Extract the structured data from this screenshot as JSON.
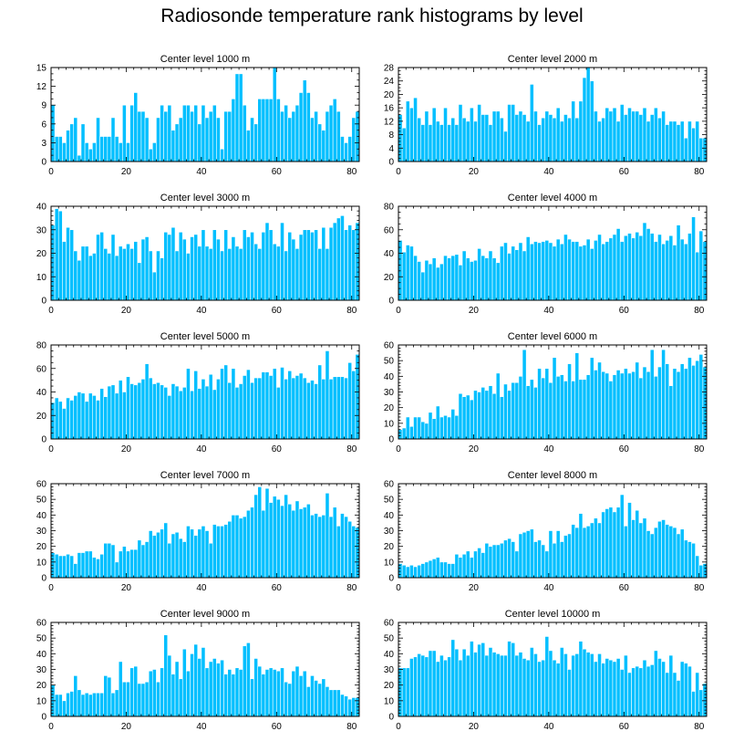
{
  "figure": {
    "title": "Radiosonde temperature rank histograms by level"
  },
  "style": {
    "bar_color": "#00bfff",
    "bar_outline": "#ffffff",
    "axis_color": "#000000"
  },
  "chart_data": [
    {
      "type": "bar",
      "title": "Center level 1000 m",
      "ylim": [
        0,
        15
      ],
      "yticks": [
        0,
        3,
        6,
        9,
        12,
        15
      ],
      "xlim": [
        0,
        82
      ],
      "xticks": [
        0,
        20,
        40,
        60,
        80
      ],
      "values": [
        9,
        4,
        4,
        3,
        5,
        6,
        7,
        1,
        6,
        3,
        2,
        3,
        7,
        4,
        4,
        4,
        7,
        4,
        3,
        9,
        3,
        9,
        11,
        8,
        8,
        7,
        2,
        3,
        7,
        9,
        8,
        9,
        5,
        6,
        7,
        9,
        9,
        8,
        9,
        6,
        9,
        7,
        8,
        9,
        7,
        2,
        8,
        8,
        10,
        14,
        14,
        9,
        5,
        7,
        6,
        10,
        10,
        10,
        10,
        15,
        10,
        8,
        9,
        7,
        8,
        9,
        11,
        13,
        11,
        7,
        8,
        6,
        5,
        8,
        9,
        10,
        8,
        4,
        3,
        4,
        7,
        8
      ]
    },
    {
      "type": "bar",
      "title": "Center level 2000 m",
      "ylim": [
        0,
        28
      ],
      "yticks": [
        0,
        4,
        8,
        12,
        16,
        20,
        24,
        28
      ],
      "xlim": [
        0,
        82
      ],
      "xticks": [
        0,
        20,
        40,
        60,
        80
      ],
      "values": [
        14,
        10,
        18,
        16,
        19,
        13,
        11,
        15,
        11,
        16,
        12,
        11,
        16,
        11,
        13,
        11,
        17,
        13,
        12,
        16,
        12,
        17,
        14,
        14,
        11,
        15,
        15,
        13,
        9,
        17,
        17,
        14,
        15,
        14,
        12,
        23,
        15,
        11,
        13,
        15,
        14,
        13,
        16,
        12,
        14,
        13,
        18,
        13,
        18,
        25,
        28,
        24,
        15,
        12,
        13,
        16,
        15,
        16,
        12,
        17,
        14,
        16,
        15,
        15,
        14,
        16,
        12,
        14,
        16,
        13,
        15,
        11,
        12,
        12,
        11,
        12,
        7,
        12,
        10,
        12,
        7,
        7
      ]
    },
    {
      "type": "bar",
      "title": "Center level 3000 m",
      "ylim": [
        0,
        40
      ],
      "yticks": [
        0,
        10,
        20,
        30,
        40
      ],
      "xlim": [
        0,
        82
      ],
      "xticks": [
        0,
        20,
        40,
        60,
        80
      ],
      "values": [
        32,
        39,
        38,
        25,
        31,
        30,
        21,
        17,
        23,
        23,
        19,
        20,
        28,
        29,
        22,
        20,
        28,
        19,
        23,
        22,
        24,
        22,
        25,
        16,
        26,
        27,
        21,
        12,
        21,
        18,
        29,
        28,
        31,
        21,
        29,
        26,
        20,
        27,
        28,
        23,
        30,
        23,
        22,
        30,
        26,
        21,
        30,
        22,
        27,
        23,
        22,
        30,
        27,
        29,
        24,
        22,
        29,
        33,
        30,
        24,
        23,
        33,
        21,
        29,
        26,
        22,
        28,
        30,
        30,
        29,
        30,
        22,
        31,
        22,
        31,
        33,
        35,
        36,
        30,
        32,
        30,
        33
      ]
    },
    {
      "type": "bar",
      "title": "Center level 4000 m",
      "ylim": [
        0,
        80
      ],
      "yticks": [
        0,
        20,
        40,
        60,
        80
      ],
      "xlim": [
        0,
        82
      ],
      "xticks": [
        0,
        20,
        40,
        60,
        80
      ],
      "values": [
        51,
        41,
        47,
        46,
        38,
        33,
        24,
        34,
        31,
        36,
        28,
        31,
        38,
        36,
        38,
        39,
        30,
        42,
        36,
        33,
        34,
        44,
        38,
        36,
        42,
        36,
        32,
        46,
        49,
        40,
        46,
        43,
        49,
        42,
        54,
        48,
        50,
        49,
        50,
        51,
        49,
        46,
        52,
        48,
        56,
        52,
        50,
        50,
        46,
        47,
        52,
        44,
        51,
        56,
        48,
        50,
        53,
        56,
        61,
        50,
        55,
        57,
        53,
        58,
        55,
        66,
        61,
        57,
        50,
        56,
        48,
        51,
        55,
        47,
        64,
        52,
        48,
        57,
        71,
        41,
        59,
        50
      ]
    },
    {
      "type": "bar",
      "title": "Center level 5000 m",
      "ylim": [
        0,
        80
      ],
      "yticks": [
        0,
        20,
        40,
        60,
        80
      ],
      "xlim": [
        0,
        82
      ],
      "xticks": [
        0,
        20,
        40,
        60,
        80
      ],
      "values": [
        31,
        35,
        32,
        26,
        35,
        33,
        37,
        40,
        39,
        32,
        39,
        37,
        33,
        43,
        36,
        45,
        46,
        39,
        50,
        40,
        53,
        47,
        46,
        48,
        51,
        64,
        52,
        47,
        48,
        46,
        44,
        37,
        47,
        45,
        41,
        44,
        60,
        41,
        58,
        43,
        51,
        45,
        55,
        42,
        51,
        60,
        63,
        48,
        60,
        44,
        47,
        54,
        59,
        48,
        52,
        52,
        57,
        57,
        54,
        60,
        44,
        61,
        51,
        58,
        52,
        54,
        56,
        52,
        48,
        50,
        47,
        63,
        51,
        75,
        51,
        53,
        53,
        53,
        52,
        65,
        58,
        72
      ]
    },
    {
      "type": "bar",
      "title": "Center level 6000 m",
      "ylim": [
        0,
        60
      ],
      "yticks": [
        0,
        10,
        20,
        30,
        40,
        50,
        60
      ],
      "xlim": [
        0,
        82
      ],
      "xticks": [
        0,
        20,
        40,
        60,
        80
      ],
      "values": [
        6,
        7,
        14,
        8,
        14,
        14,
        11,
        10,
        17,
        13,
        21,
        14,
        15,
        14,
        19,
        15,
        29,
        27,
        28,
        25,
        31,
        30,
        33,
        31,
        34,
        29,
        42,
        27,
        35,
        31,
        36,
        36,
        40,
        57,
        34,
        38,
        33,
        45,
        39,
        45,
        36,
        52,
        40,
        41,
        37,
        48,
        37,
        55,
        38,
        38,
        41,
        52,
        44,
        49,
        43,
        42,
        37,
        41,
        44,
        42,
        45,
        42,
        43,
        49,
        39,
        46,
        43,
        57,
        40,
        46,
        57,
        48,
        34,
        45,
        43,
        48,
        45,
        52,
        47,
        50,
        54,
        46
      ]
    },
    {
      "type": "bar",
      "title": "Center level 7000 m",
      "ylim": [
        0,
        60
      ],
      "yticks": [
        0,
        10,
        20,
        30,
        40,
        50,
        60
      ],
      "xlim": [
        0,
        82
      ],
      "xticks": [
        0,
        20,
        40,
        60,
        80
      ],
      "values": [
        16,
        15,
        14,
        14,
        15,
        14,
        9,
        16,
        16,
        17,
        17,
        13,
        12,
        15,
        22,
        22,
        21,
        10,
        17,
        20,
        17,
        18,
        18,
        24,
        21,
        23,
        30,
        27,
        29,
        31,
        35,
        22,
        28,
        29,
        25,
        23,
        33,
        31,
        27,
        31,
        33,
        30,
        22,
        34,
        33,
        33,
        34,
        36,
        40,
        40,
        38,
        39,
        43,
        45,
        53,
        58,
        43,
        57,
        48,
        52,
        50,
        46,
        53,
        47,
        43,
        49,
        44,
        45,
        47,
        40,
        41,
        39,
        40,
        54,
        39,
        45,
        33,
        41,
        39,
        36,
        33,
        32
      ]
    },
    {
      "type": "bar",
      "title": "Center level 8000 m",
      "ylim": [
        0,
        60
      ],
      "yticks": [
        0,
        10,
        20,
        30,
        40,
        50,
        60
      ],
      "xlim": [
        0,
        82
      ],
      "xticks": [
        0,
        20,
        40,
        60,
        80
      ],
      "values": [
        9,
        8,
        7,
        8,
        7,
        8,
        9,
        10,
        11,
        12,
        13,
        10,
        10,
        9,
        9,
        15,
        13,
        15,
        17,
        13,
        17,
        19,
        16,
        22,
        20,
        21,
        21,
        22,
        24,
        25,
        23,
        17,
        28,
        29,
        30,
        31,
        23,
        24,
        21,
        17,
        30,
        22,
        30,
        23,
        27,
        28,
        34,
        32,
        41,
        32,
        33,
        35,
        38,
        35,
        42,
        44,
        45,
        42,
        45,
        53,
        33,
        48,
        37,
        43,
        35,
        38,
        30,
        28,
        32,
        36,
        37,
        34,
        33,
        32,
        28,
        31,
        24,
        23,
        22,
        14,
        8,
        9
      ]
    },
    {
      "type": "bar",
      "title": "Center level 9000 m",
      "ylim": [
        0,
        60
      ],
      "yticks": [
        0,
        10,
        20,
        30,
        40,
        50,
        60
      ],
      "xlim": [
        0,
        82
      ],
      "xticks": [
        0,
        20,
        40,
        60,
        80
      ],
      "values": [
        20,
        14,
        14,
        10,
        15,
        16,
        26,
        17,
        14,
        15,
        14,
        15,
        15,
        15,
        26,
        25,
        15,
        17,
        35,
        22,
        22,
        31,
        32,
        21,
        21,
        22,
        29,
        30,
        22,
        31,
        52,
        39,
        27,
        35,
        24,
        43,
        29,
        40,
        46,
        37,
        44,
        31,
        35,
        37,
        34,
        36,
        27,
        30,
        27,
        31,
        30,
        45,
        47,
        24,
        37,
        32,
        27,
        30,
        31,
        30,
        29,
        31,
        22,
        21,
        29,
        32,
        26,
        29,
        19,
        26,
        23,
        21,
        24,
        19,
        17,
        17,
        17,
        14,
        13,
        11,
        12,
        12
      ]
    },
    {
      "type": "bar",
      "title": "Center level 10000 m",
      "ylim": [
        0,
        60
      ],
      "yticks": [
        0,
        10,
        20,
        30,
        40,
        50,
        60
      ],
      "xlim": [
        0,
        82
      ],
      "xticks": [
        0,
        20,
        40,
        60,
        80
      ],
      "values": [
        31,
        31,
        31,
        37,
        38,
        40,
        39,
        38,
        42,
        42,
        35,
        39,
        36,
        38,
        49,
        43,
        36,
        43,
        39,
        48,
        41,
        46,
        47,
        39,
        44,
        41,
        40,
        39,
        39,
        48,
        47,
        39,
        41,
        37,
        36,
        44,
        40,
        35,
        36,
        51,
        42,
        36,
        34,
        44,
        40,
        30,
        39,
        40,
        48,
        43,
        41,
        40,
        35,
        40,
        34,
        37,
        36,
        35,
        37,
        30,
        39,
        28,
        31,
        32,
        31,
        36,
        32,
        33,
        42,
        37,
        35,
        28,
        39,
        28,
        23,
        35,
        34,
        32,
        16,
        28,
        17,
        21
      ]
    }
  ]
}
